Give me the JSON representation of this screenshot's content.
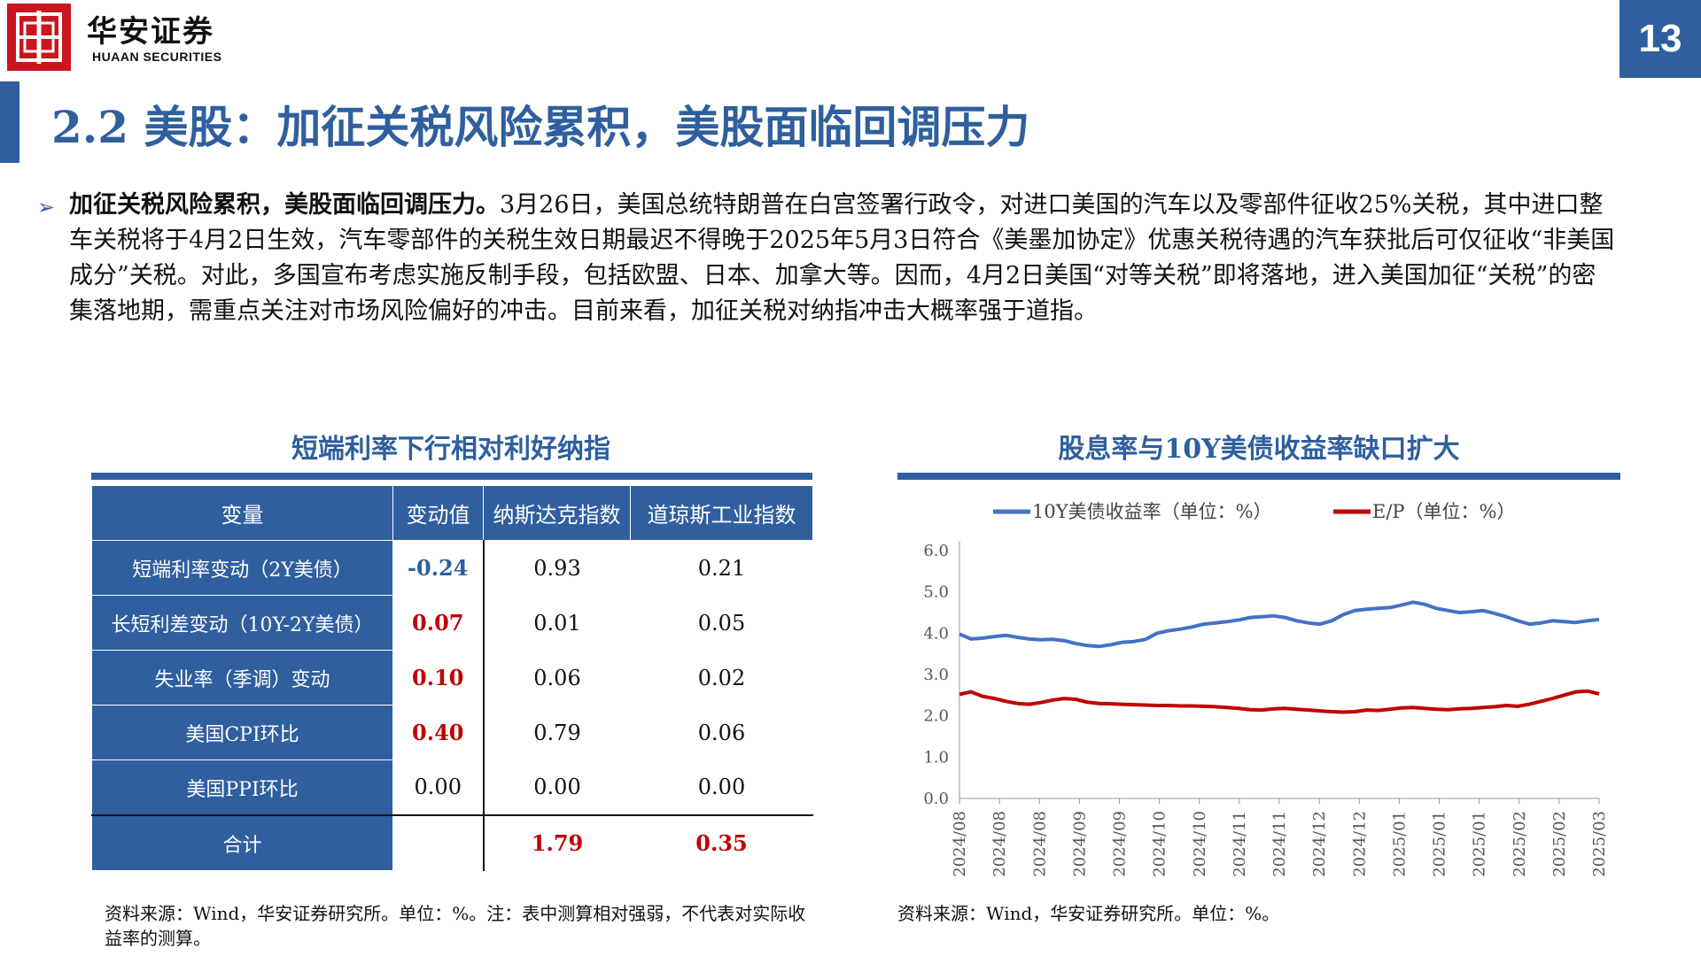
{
  "header": {
    "logo_cn": "华安证券",
    "logo_en": "HUAAN SECURITIES",
    "page_number": "13",
    "title": "2.2 美股：加征关税风险累积，美股面临回调压力"
  },
  "body": {
    "lead": "加征关税风险累积，美股面临回调压力。",
    "text": "3月26日，美国总统特朗普在白宫签署行政令，对进口美国的汽车以及零部件征收25%关税，其中进口整车关税将于4月2日生效，汽车零部件的关税生效日期最迟不得晚于2025年5月3日符合《美墨加协定》优惠关税待遇的汽车获批后可仅征收“非美国成分”关税。对此，多国宣布考虑实施反制手段，包括欧盟、日本、加拿大等。因而，4月2日美国“对等关税”即将落地，进入美国加征“关税”的密集落地期，需重点关注对市场风险偏好的冲击。目前来看，加征关税对纳指冲击大概率强于道指。"
  },
  "table_section": {
    "title": "短端利率下行相对利好纳指",
    "headers": [
      "变量",
      "变动值",
      "纳斯达克指数",
      "道琼斯工业指数"
    ],
    "rows": [
      {
        "label": "短端利率变动（2Y美债）",
        "change": "-0.24",
        "nasdaq": "0.93",
        "dow": "0.21"
      },
      {
        "label": "长短利差变动（10Y-2Y美债）",
        "change": "0.07",
        "nasdaq": "0.01",
        "dow": "0.05"
      },
      {
        "label": "失业率（季调）变动",
        "change": "0.10",
        "nasdaq": "0.06",
        "dow": "0.02"
      },
      {
        "label": "美国CPI环比",
        "change": "0.40",
        "nasdaq": "0.79",
        "dow": "0.06"
      },
      {
        "label": "美国PPI环比",
        "change": "0.00",
        "nasdaq": "0.00",
        "dow": "0.00"
      }
    ],
    "total": {
      "label": "合计",
      "change": "",
      "nasdaq": "1.79",
      "dow": "0.35"
    },
    "note": "资料来源：Wind，华安证券研究所。单位：%。注：表中测算相对强弱，不代表对实际收益率的测算。"
  },
  "chart_section": {
    "title": "股息率与10Y美债收益率缺口扩大",
    "note": "资料来源：Wind，华安证券研究所。单位：%。"
  },
  "colors": {
    "brand_blue": "#2f5f9e",
    "brand_red": "#c8161e",
    "series_blue": "#4472c4",
    "series_red": "#c00000"
  },
  "chart_data": {
    "type": "line",
    "title": "股息率与10Y美债收益率缺口扩大",
    "ylim": [
      0,
      6
    ],
    "yticks": [
      "0.0",
      "1.0",
      "2.0",
      "3.0",
      "4.0",
      "5.0",
      "6.0"
    ],
    "xticks": [
      "2024/08",
      "2024/08",
      "2024/08",
      "2024/09",
      "2024/09",
      "2024/10",
      "2024/10",
      "2024/11",
      "2024/11",
      "2024/12",
      "2024/12",
      "2025/01",
      "2025/01",
      "2025/01",
      "2025/02",
      "2025/02",
      "2025/03"
    ],
    "legend_position": "top",
    "series": [
      {
        "name": "10Y美债收益率（单位：%）",
        "color": "#4472c4",
        "values": [
          3.98,
          3.86,
          3.88,
          3.92,
          3.95,
          3.9,
          3.86,
          3.84,
          3.85,
          3.82,
          3.75,
          3.7,
          3.68,
          3.72,
          3.78,
          3.8,
          3.85,
          4.0,
          4.06,
          4.1,
          4.15,
          4.22,
          4.25,
          4.28,
          4.32,
          4.38,
          4.4,
          4.42,
          4.38,
          4.3,
          4.25,
          4.22,
          4.3,
          4.45,
          4.55,
          4.58,
          4.6,
          4.62,
          4.68,
          4.75,
          4.7,
          4.6,
          4.55,
          4.5,
          4.52,
          4.55,
          4.48,
          4.4,
          4.3,
          4.22,
          4.25,
          4.3,
          4.28,
          4.26,
          4.3,
          4.33
        ]
      },
      {
        "name": "E/P（单位：%）",
        "color": "#c00000",
        "values": [
          2.52,
          2.58,
          2.47,
          2.42,
          2.35,
          2.3,
          2.28,
          2.32,
          2.38,
          2.42,
          2.4,
          2.33,
          2.3,
          2.29,
          2.28,
          2.27,
          2.26,
          2.25,
          2.25,
          2.24,
          2.24,
          2.23,
          2.22,
          2.2,
          2.18,
          2.15,
          2.14,
          2.17,
          2.18,
          2.16,
          2.14,
          2.12,
          2.1,
          2.09,
          2.1,
          2.14,
          2.13,
          2.16,
          2.19,
          2.2,
          2.18,
          2.16,
          2.15,
          2.17,
          2.18,
          2.2,
          2.22,
          2.25,
          2.23,
          2.28,
          2.35,
          2.42,
          2.5,
          2.58,
          2.6,
          2.53
        ]
      }
    ]
  }
}
